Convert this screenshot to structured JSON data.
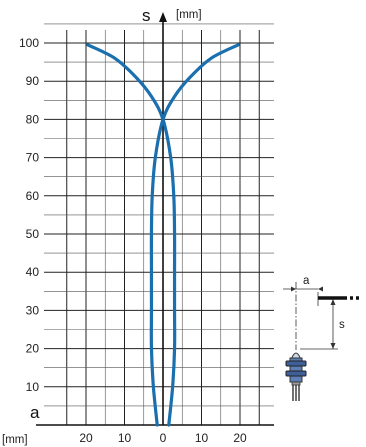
{
  "chart_data": {
    "type": "line",
    "y_axis": {
      "label": "s",
      "unit": "[mm]",
      "ticks": [
        10,
        20,
        30,
        40,
        50,
        60,
        70,
        80,
        90,
        100
      ],
      "range": [
        0,
        105
      ]
    },
    "x_axis": {
      "label": "a",
      "unit": "[mm]",
      "tick_labels": [
        "20",
        "10",
        "0",
        "10",
        "20"
      ],
      "tick_values": [
        -20,
        -10,
        0,
        10,
        20
      ],
      "range": [
        -25,
        25
      ]
    },
    "series": [
      {
        "values": [
          {
            "x": -1.5,
            "y": 0
          },
          {
            "x": -2.5,
            "y": 10
          },
          {
            "x": -3.0,
            "y": 20
          },
          {
            "x": -3.0,
            "y": 30
          },
          {
            "x": -3.0,
            "y": 40
          },
          {
            "x": -3.0,
            "y": 50
          },
          {
            "x": -2.8,
            "y": 60
          },
          {
            "x": -2.0,
            "y": 70
          },
          {
            "x": 0,
            "y": 80
          },
          {
            "x": 3.0,
            "y": 86
          },
          {
            "x": 7.0,
            "y": 91
          },
          {
            "x": 12.5,
            "y": 96
          },
          {
            "x": 19.5,
            "y": 99.5
          }
        ]
      },
      {
        "values": [
          {
            "x": 1.5,
            "y": 0
          },
          {
            "x": 2.5,
            "y": 10
          },
          {
            "x": 3.0,
            "y": 20
          },
          {
            "x": 3.0,
            "y": 30
          },
          {
            "x": 3.0,
            "y": 40
          },
          {
            "x": 3.0,
            "y": 50
          },
          {
            "x": 2.8,
            "y": 60
          },
          {
            "x": 2.0,
            "y": 70
          },
          {
            "x": 0,
            "y": 80
          },
          {
            "x": -3.0,
            "y": 86
          },
          {
            "x": -7.0,
            "y": 91
          },
          {
            "x": -12.5,
            "y": 96
          },
          {
            "x": -19.5,
            "y": 99.5
          }
        ]
      }
    ],
    "grid": true,
    "line_color": "#1a6fae"
  },
  "inset": {
    "label_a": "a",
    "label_s": "s",
    "sensor_color": "#5d7fb6"
  }
}
